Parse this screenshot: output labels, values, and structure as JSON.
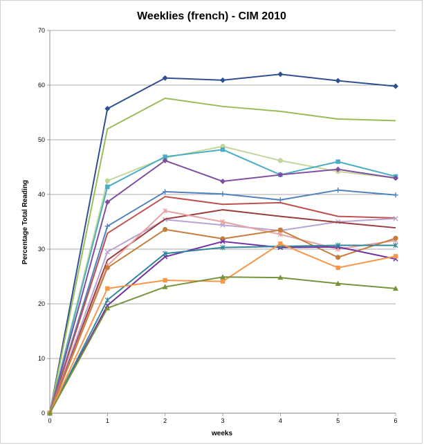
{
  "chart_data": {
    "type": "line",
    "title": "Weeklies (french) - CIM 2010",
    "xlabel": "weeks",
    "ylabel": "Percentage Total Reading",
    "x": [
      0,
      1,
      2,
      3,
      4,
      5,
      6
    ],
    "xlim": [
      0,
      6
    ],
    "ylim": [
      0,
      70
    ],
    "x_ticks": [
      "0",
      "1",
      "2",
      "3",
      "4",
      "5",
      "6"
    ],
    "y_ticks": [
      "0",
      "10",
      "20",
      "30",
      "40",
      "50",
      "60",
      "70"
    ],
    "grid": "horizontal",
    "legend": "none",
    "series": [
      {
        "color": "#2f4f8f",
        "marker": "diamond",
        "values": [
          0,
          55.7,
          61.3,
          60.9,
          62.0,
          60.8,
          59.8
        ]
      },
      {
        "color": "#9bbb59",
        "marker": "none",
        "values": [
          0,
          52.0,
          57.6,
          56.1,
          55.2,
          53.8,
          53.5
        ]
      },
      {
        "color": "#c3d69b",
        "marker": "circle",
        "values": [
          0,
          42.5,
          46.7,
          48.8,
          46.2,
          44.2,
          43.0
        ]
      },
      {
        "color": "#4bacc6",
        "marker": "square",
        "values": [
          0,
          41.4,
          46.9,
          48.2,
          43.6,
          46.0,
          43.3
        ]
      },
      {
        "color": "#7f4f9f",
        "marker": "diamond",
        "values": [
          0,
          38.6,
          46.2,
          42.4,
          43.6,
          44.6,
          43.0
        ]
      },
      {
        "color": "#4f81bd",
        "marker": "plus",
        "values": [
          0,
          34.2,
          40.5,
          40.1,
          39.0,
          40.8,
          39.9
        ]
      },
      {
        "color": "#c0504d",
        "marker": "none",
        "values": [
          0,
          32.9,
          39.6,
          38.2,
          38.5,
          36.0,
          35.7
        ]
      },
      {
        "color": "#b7a4d1",
        "marker": "x",
        "values": [
          0,
          29.5,
          35.4,
          34.4,
          33.4,
          35.0,
          35.6
        ]
      },
      {
        "color": "#9b3b3b",
        "marker": "none",
        "values": [
          0,
          28.0,
          35.5,
          37.2,
          36.0,
          34.9,
          33.9
        ]
      },
      {
        "color": "#e6a1a1",
        "marker": "star",
        "values": [
          0,
          27.0,
          37.0,
          35.0,
          32.7,
          30.0,
          31.6
        ]
      },
      {
        "color": "#c47d3a",
        "marker": "circle",
        "values": [
          0,
          26.6,
          33.6,
          31.9,
          33.5,
          28.5,
          32.0
        ]
      },
      {
        "color": "#7030a0",
        "marker": "x",
        "values": [
          0,
          19.7,
          28.6,
          31.4,
          30.3,
          30.4,
          28.2
        ]
      },
      {
        "color": "#31859c",
        "marker": "star",
        "values": [
          0,
          20.7,
          29.2,
          30.3,
          30.5,
          30.7,
          30.7
        ]
      },
      {
        "color": "#f79646",
        "marker": "square",
        "values": [
          0,
          22.8,
          24.3,
          24.1,
          31.0,
          26.6,
          28.7
        ]
      },
      {
        "color": "#77933c",
        "marker": "triangle",
        "values": [
          0,
          19.2,
          23.1,
          24.9,
          24.8,
          23.7,
          22.8
        ]
      }
    ]
  }
}
